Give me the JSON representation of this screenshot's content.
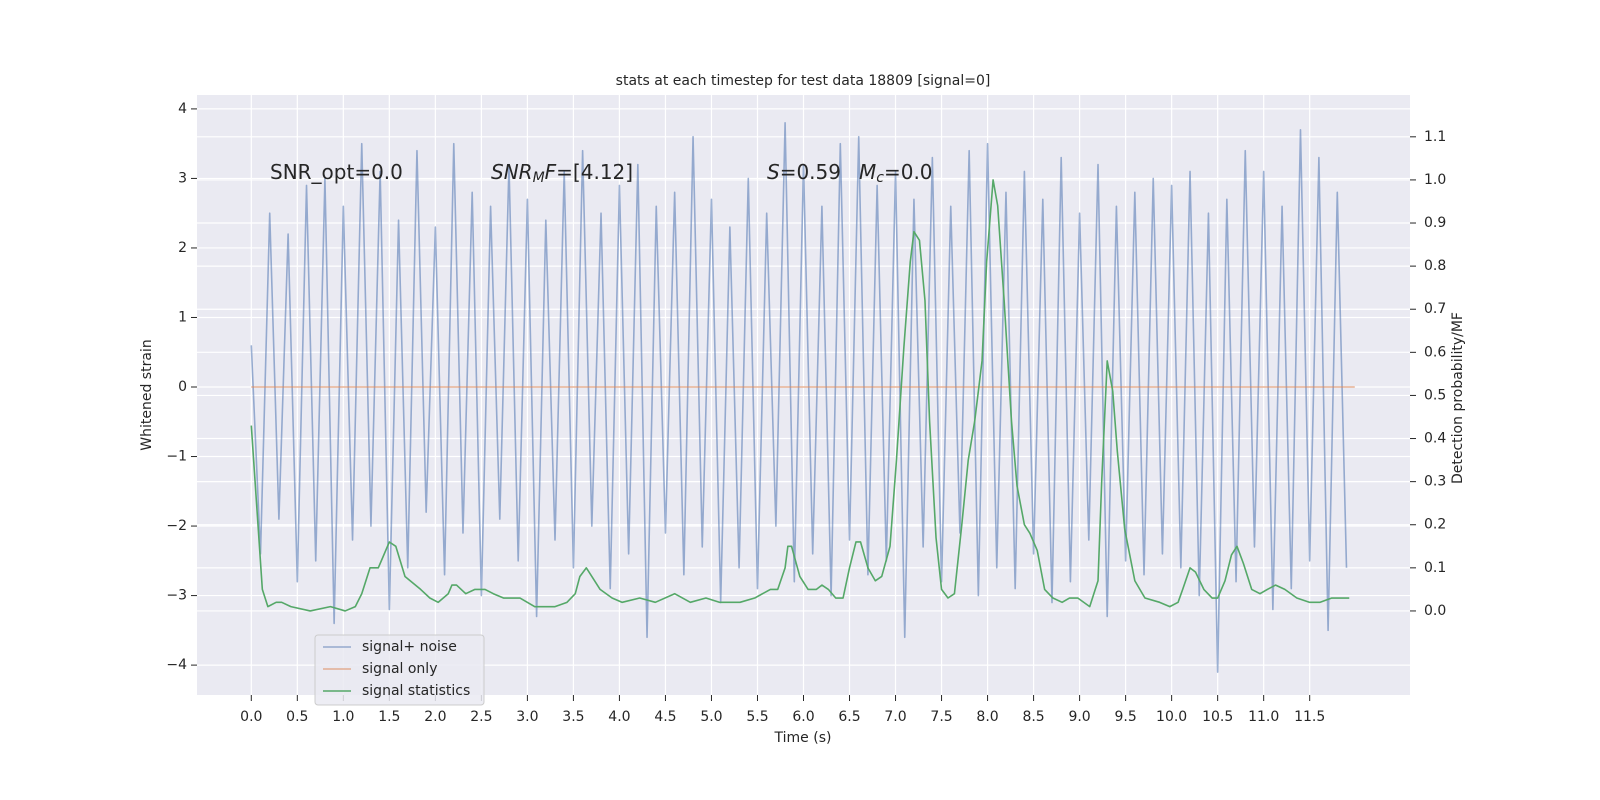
{
  "chart_data": {
    "type": "line",
    "title": "stats at each timestep for test data 18809 [signal=0]",
    "xlabel": "Time (s)",
    "ylabel": "Whitened strain",
    "y2label": "Detection probability/MF",
    "annotations": [
      [
        "SNR_opt=0.0"
      ],
      [
        "SNR",
        "M",
        "F",
        "=[4.12]"
      ],
      [
        "S",
        "=0.59"
      ],
      [
        "M",
        "c",
        "=0.0"
      ]
    ],
    "xlim": [
      -0.59,
      12.59
    ],
    "ylim": [
      -4.43,
      4.2
    ],
    "y2lim": [
      -0.195,
      1.197
    ],
    "xticks": [
      {
        "value": 0,
        "label": "0.0"
      },
      0.5,
      {
        "value": 1,
        "label": "1.0"
      },
      1.5,
      {
        "value": 2,
        "label": "2.0"
      },
      2.5,
      {
        "value": 3,
        "label": "3.0"
      },
      3.5,
      {
        "value": 4,
        "label": "4.0"
      },
      4.5,
      {
        "value": 5,
        "label": "5.0"
      },
      5.5,
      {
        "value": 6,
        "label": "6.0"
      },
      6.5,
      {
        "value": 7,
        "label": "7.0"
      },
      7.5,
      {
        "value": 8,
        "label": "8.0"
      },
      8.5,
      {
        "value": 9,
        "label": "9.0"
      },
      9.5,
      {
        "value": 10,
        "label": "10.0"
      },
      10.5,
      {
        "value": 11,
        "label": "11.0"
      },
      11.5
    ],
    "yticks": [
      {
        "value": -4,
        "label": "−4"
      },
      {
        "value": -3,
        "label": "−3"
      },
      {
        "value": -2,
        "label": "−2"
      },
      {
        "value": -1,
        "label": "−1"
      },
      0,
      1,
      2,
      3,
      4
    ],
    "y2ticks": [
      {
        "value": 0,
        "label": "0.0"
      },
      0.1,
      0.2,
      0.3,
      0.4,
      0.5,
      0.6,
      0.7,
      0.8,
      0.9,
      {
        "value": 1,
        "label": "1.0"
      },
      1.1
    ],
    "grid": true,
    "legend": "lower left",
    "series": [
      {
        "name": "signal+ noise",
        "color": "#4c72b0",
        "x": [
          0,
          0.1,
          0.2,
          0.3,
          0.4,
          0.5,
          0.6,
          0.7,
          0.8,
          0.9,
          1,
          1.1,
          1.2,
          1.3,
          1.4,
          1.5,
          1.6,
          1.7,
          1.8,
          1.9,
          2,
          2.1,
          2.2,
          2.3,
          2.4,
          2.5,
          2.6,
          2.7,
          2.8,
          2.9,
          3,
          3.1,
          3.2,
          3.3,
          3.4,
          3.5,
          3.6,
          3.7,
          3.8,
          3.9,
          4,
          4.1,
          4.2,
          4.3,
          4.4,
          4.5,
          4.6,
          4.7,
          4.8,
          4.9,
          5,
          5.1,
          5.2,
          5.3,
          5.4,
          5.5,
          5.6,
          5.7,
          5.8,
          5.9,
          6,
          6.1,
          6.2,
          6.3,
          6.4,
          6.5,
          6.6,
          6.7,
          6.8,
          6.9,
          7,
          7.1,
          7.2,
          7.3,
          7.4,
          7.5,
          7.6,
          7.7,
          7.8,
          7.9,
          8,
          8.1,
          8.2,
          8.3,
          8.4,
          8.5,
          8.6,
          8.7,
          8.8,
          8.9,
          9,
          9.1,
          9.2,
          9.3,
          9.4,
          9.5,
          9.6,
          9.7,
          9.8,
          9.9,
          10,
          10.1,
          10.2,
          10.3,
          10.4,
          10.5,
          10.6,
          10.7,
          10.8,
          10.9,
          11,
          11.1,
          11.2,
          11.3,
          11.4,
          11.5,
          11.6,
          11.7,
          11.8,
          11.9
        ],
        "values": [
          0.6,
          -2.4,
          2.5,
          -1.9,
          2.2,
          -2.8,
          2.9,
          -2.5,
          3.0,
          -3.4,
          2.6,
          -2.2,
          3.5,
          -2.0,
          3.1,
          -3.2,
          2.4,
          -2.6,
          3.4,
          -1.8,
          2.3,
          -2.7,
          3.5,
          -2.1,
          2.8,
          -3.0,
          2.6,
          -1.9,
          3.2,
          -2.5,
          2.7,
          -3.3,
          2.4,
          -2.2,
          3.1,
          -2.6,
          3.4,
          -2.0,
          2.5,
          -2.9,
          2.9,
          -2.4,
          3.2,
          -3.6,
          2.6,
          -2.1,
          2.8,
          -2.7,
          3.6,
          -2.3,
          2.7,
          -3.1,
          2.3,
          -2.6,
          3.0,
          -2.9,
          2.5,
          -2.0,
          3.8,
          -2.8,
          3.2,
          -2.4,
          2.6,
          -3.0,
          3.5,
          -2.2,
          3.6,
          -2.7,
          2.9,
          -2.5,
          3.1,
          -3.6,
          2.7,
          -2.3,
          3.3,
          -2.8,
          2.6,
          -2.1,
          3.4,
          -3.0,
          3.5,
          -2.6,
          2.8,
          -2.9,
          3.1,
          -2.4,
          2.7,
          -3.1,
          3.3,
          -2.8,
          2.5,
          -2.2,
          3.2,
          -3.3,
          2.6,
          -2.5,
          2.8,
          -2.7,
          3.0,
          -2.4,
          2.9,
          -2.6,
          3.1,
          -3.0,
          2.5,
          -4.1,
          2.7,
          -2.8,
          3.4,
          -2.3,
          3.1,
          -3.2,
          2.6,
          -2.9,
          3.7,
          -2.5,
          3.3,
          -3.5,
          2.8,
          -2.6
        ]
      },
      {
        "name": "signal only",
        "color": "#dd8452",
        "x": [
          0,
          11.99
        ],
        "values": [
          0,
          0
        ]
      },
      {
        "name": "signal statistics",
        "color": "#55a868",
        "axis": "y2",
        "x": [
          0,
          0.12,
          0.18,
          0.27,
          0.33,
          0.43,
          0.64,
          0.86,
          1.02,
          1.13,
          1.2,
          1.29,
          1.38,
          1.5,
          1.57,
          1.67,
          1.84,
          1.94,
          2.03,
          2.14,
          2.18,
          2.23,
          2.33,
          2.43,
          2.54,
          2.63,
          2.74,
          2.92,
          3.08,
          3.3,
          3.43,
          3.52,
          3.57,
          3.64,
          3.7,
          3.79,
          3.92,
          4.03,
          4.22,
          4.39,
          4.6,
          4.77,
          4.94,
          5.09,
          5.31,
          5.47,
          5.64,
          5.72,
          5.8,
          5.83,
          5.87,
          5.96,
          6.05,
          6.14,
          6.2,
          6.27,
          6.35,
          6.43,
          6.5,
          6.57,
          6.62,
          6.7,
          6.78,
          6.85,
          6.94,
          7.01,
          7.09,
          7.16,
          7.2,
          7.26,
          7.32,
          7.37,
          7.44,
          7.5,
          7.57,
          7.64,
          7.72,
          7.79,
          7.86,
          7.94,
          7.99,
          8.06,
          8.11,
          8.18,
          8.26,
          8.32,
          8.4,
          8.46,
          8.54,
          8.62,
          8.71,
          8.81,
          8.89,
          8.98,
          9.11,
          9.2,
          9.24,
          9.3,
          9.36,
          9.41,
          9.49,
          9.6,
          9.71,
          9.87,
          9.98,
          10.07,
          10.12,
          10.2,
          10.26,
          10.35,
          10.44,
          10.5,
          10.58,
          10.65,
          10.71,
          10.78,
          10.87,
          10.96,
          11.04,
          11.13,
          11.23,
          11.36,
          11.5,
          11.61,
          11.74,
          11.88,
          11.93
        ],
        "values": [
          0.43,
          0.05,
          0.01,
          0.02,
          0.02,
          0.01,
          0.0,
          0.01,
          0.0,
          0.01,
          0.04,
          0.1,
          0.1,
          0.16,
          0.15,
          0.08,
          0.05,
          0.03,
          0.02,
          0.04,
          0.06,
          0.06,
          0.04,
          0.05,
          0.05,
          0.04,
          0.03,
          0.03,
          0.01,
          0.01,
          0.02,
          0.04,
          0.08,
          0.1,
          0.08,
          0.05,
          0.03,
          0.02,
          0.03,
          0.02,
          0.04,
          0.02,
          0.03,
          0.02,
          0.02,
          0.03,
          0.05,
          0.05,
          0.1,
          0.15,
          0.15,
          0.08,
          0.05,
          0.05,
          0.06,
          0.05,
          0.03,
          0.03,
          0.1,
          0.16,
          0.16,
          0.1,
          0.07,
          0.08,
          0.15,
          0.35,
          0.61,
          0.81,
          0.88,
          0.86,
          0.72,
          0.44,
          0.17,
          0.05,
          0.03,
          0.04,
          0.2,
          0.35,
          0.44,
          0.58,
          0.81,
          1.0,
          0.94,
          0.72,
          0.44,
          0.29,
          0.2,
          0.18,
          0.14,
          0.05,
          0.03,
          0.02,
          0.03,
          0.03,
          0.01,
          0.07,
          0.3,
          0.58,
          0.51,
          0.37,
          0.19,
          0.07,
          0.03,
          0.02,
          0.01,
          0.02,
          0.05,
          0.1,
          0.09,
          0.05,
          0.03,
          0.03,
          0.07,
          0.13,
          0.15,
          0.11,
          0.05,
          0.04,
          0.05,
          0.06,
          0.05,
          0.03,
          0.02,
          0.02,
          0.03,
          0.03,
          0.03
        ]
      }
    ]
  }
}
